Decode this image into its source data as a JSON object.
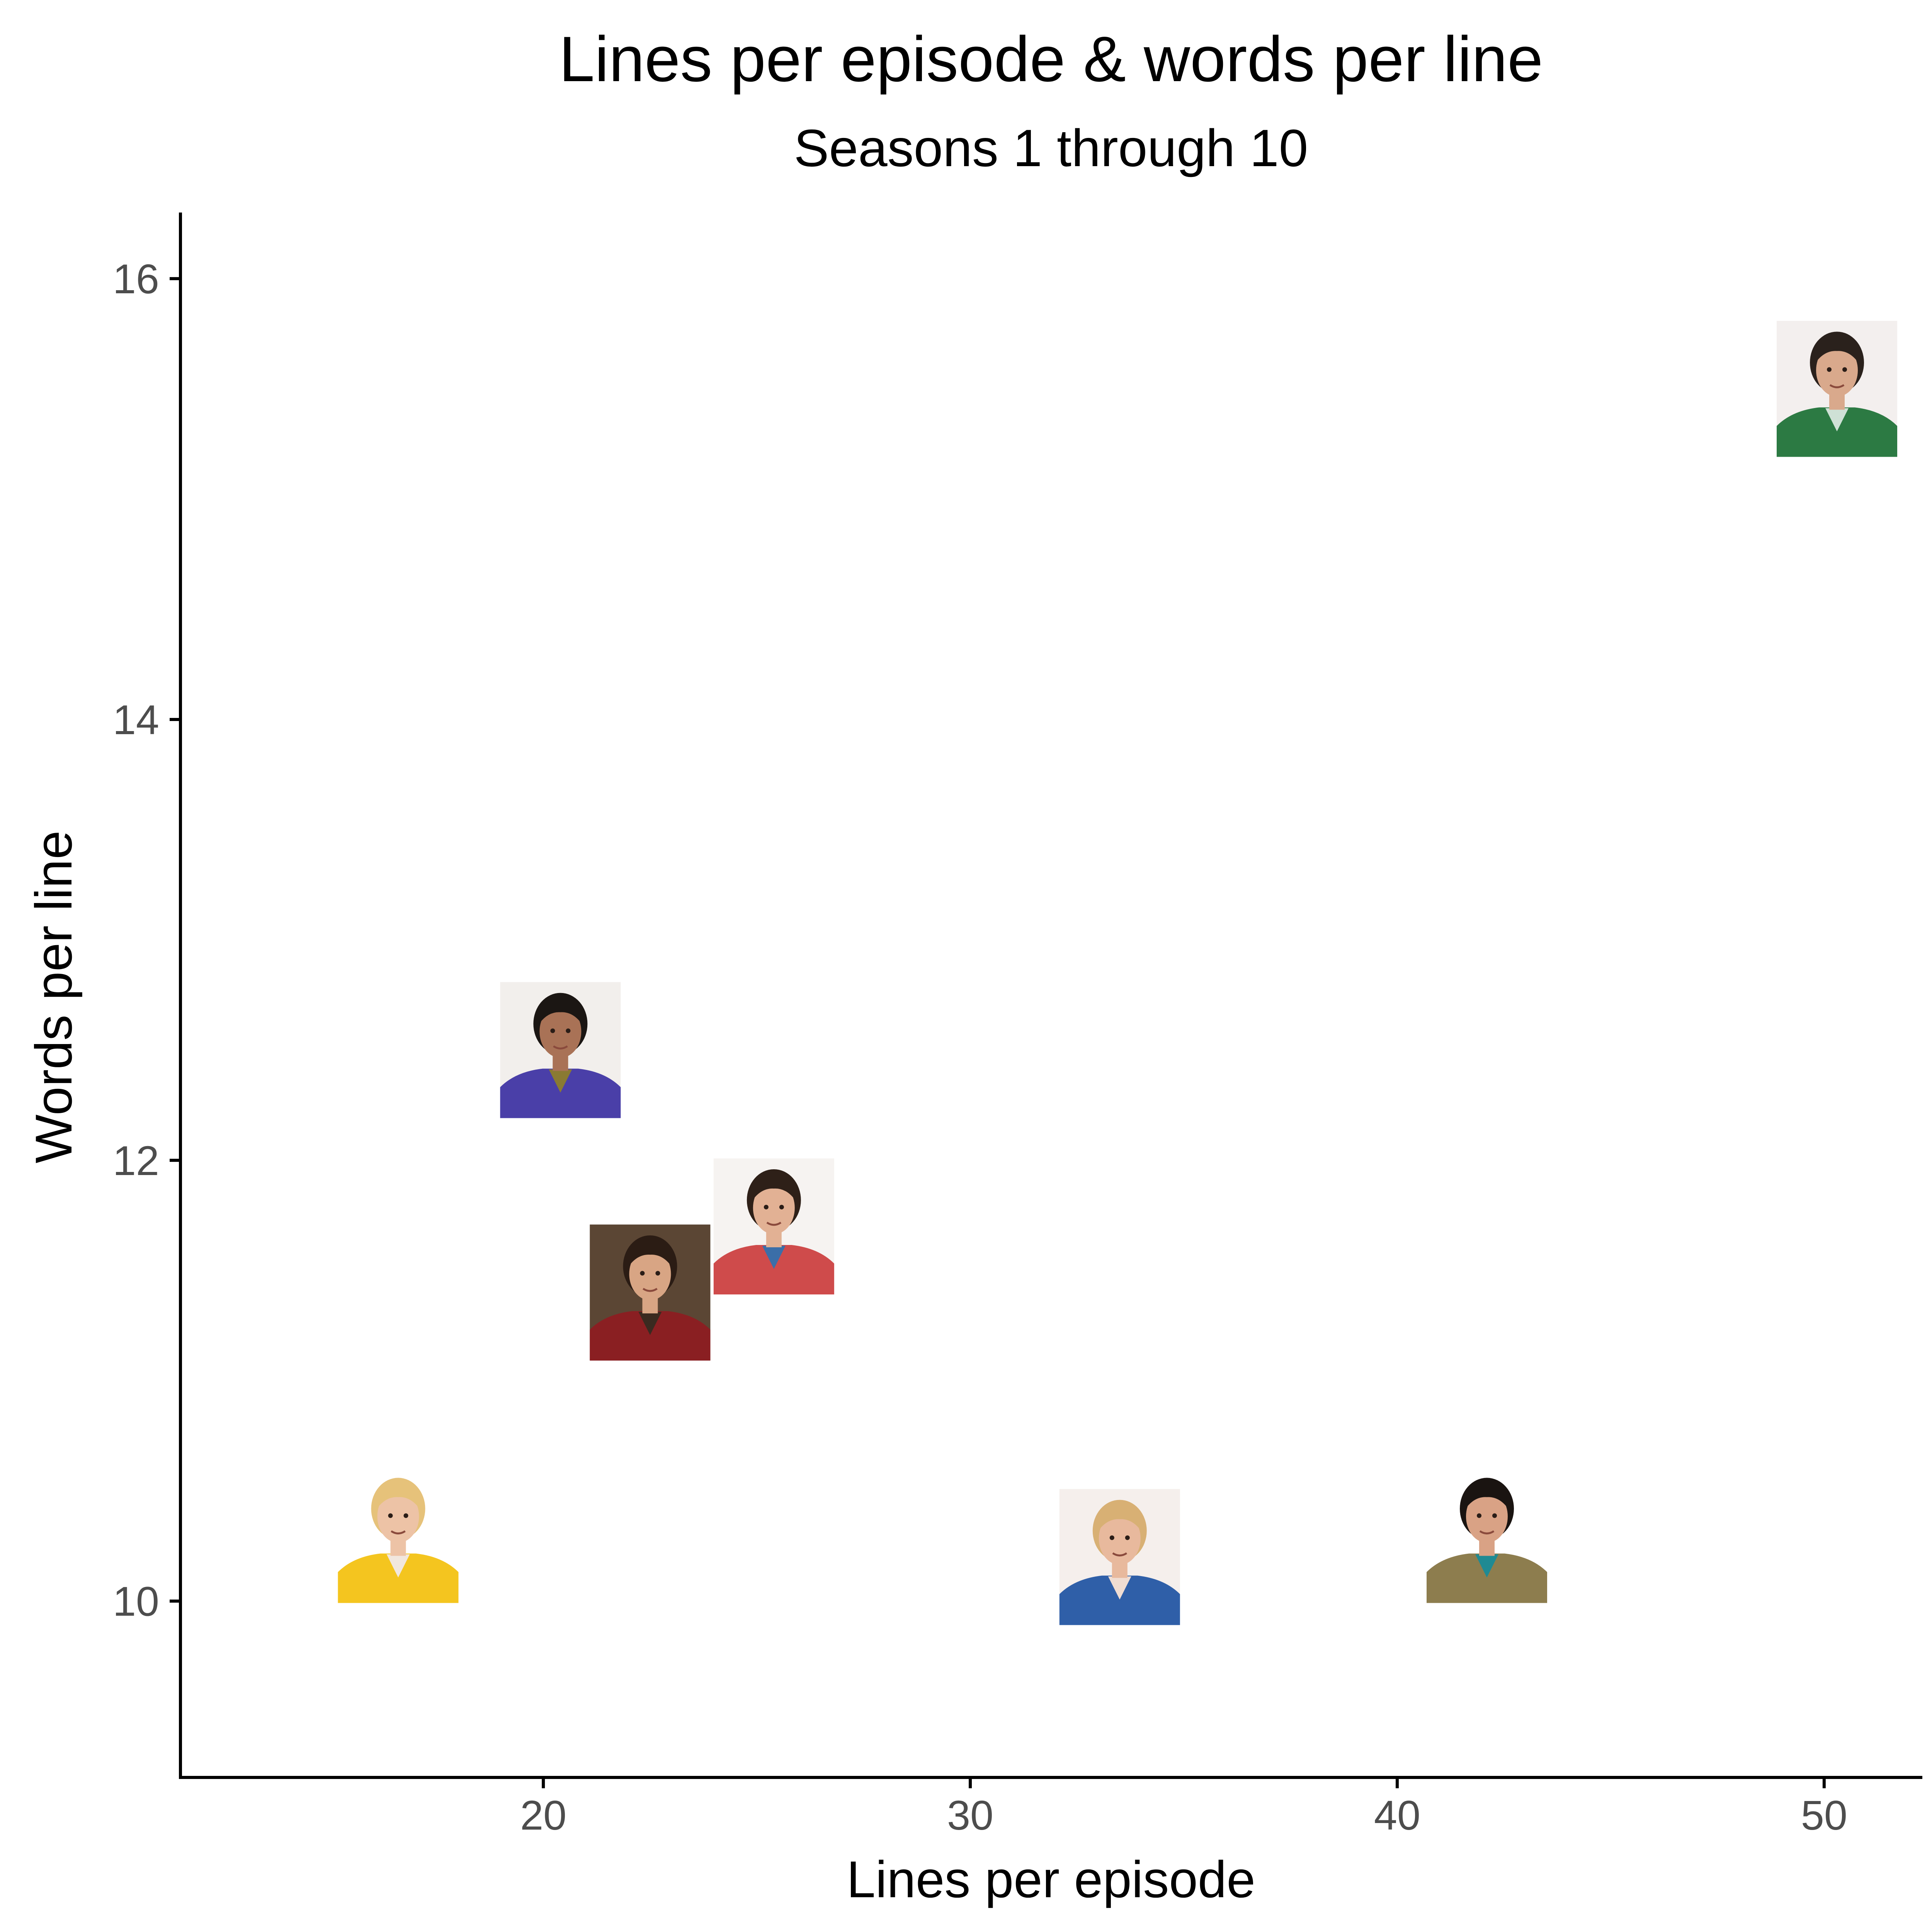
{
  "chart_data": {
    "type": "scatter",
    "title": "Lines per episode & words per line",
    "subtitle": "Seasons 1 through 10",
    "xlabel": "Lines per episode",
    "ylabel": "Words per line",
    "xlim": [
      11.5,
      52.3
    ],
    "ylim": [
      9.2,
      16.3
    ],
    "xticks": [
      20,
      30,
      40,
      50
    ],
    "yticks": [
      10,
      12,
      14,
      16
    ],
    "grid": false,
    "legend": "none",
    "marker": "character-portrait-photo",
    "points": [
      {
        "x": 50.3,
        "y": 15.5,
        "portrait": {
          "bg": "#f3efee",
          "skin": "#d9a98c",
          "hair": "#2a211c",
          "shirt": "#2c7a43",
          "accent": "#cfe1d6"
        }
      },
      {
        "x": 20.4,
        "y": 12.5,
        "portrait": {
          "bg": "#f2efec",
          "skin": "#a97256",
          "hair": "#1b1613",
          "shirt": "#4a3fa8",
          "accent": "#8a7a32"
        }
      },
      {
        "x": 25.4,
        "y": 11.7,
        "portrait": {
          "bg": "#f6f3f1",
          "skin": "#e2b194",
          "hair": "#2e2018",
          "shirt": "#cf4b4b",
          "accent": "#3b6ea8"
        }
      },
      {
        "x": 22.5,
        "y": 11.4,
        "portrait": {
          "bg": "#5b4634",
          "skin": "#d8a584",
          "hair": "#2b1c14",
          "shirt": "#8a1f22",
          "accent": "#3a2a20"
        }
      },
      {
        "x": 16.6,
        "y": 10.3,
        "portrait": {
          "bg": "#ffffff",
          "skin": "#edc3a6",
          "hair": "#e6c27a",
          "shirt": "#f4c51f",
          "accent": "#f1e7de"
        }
      },
      {
        "x": 33.5,
        "y": 10.2,
        "portrait": {
          "bg": "#f5efec",
          "skin": "#e8b99d",
          "hair": "#d8b074",
          "shirt": "#2f5fa8",
          "accent": "#f0ddd2"
        }
      },
      {
        "x": 42.1,
        "y": 10.3,
        "portrait": {
          "bg": "#ffffff",
          "skin": "#d9a285",
          "hair": "#1a1411",
          "shirt": "#8d7d4e",
          "accent": "#1f8a93"
        }
      }
    ]
  }
}
